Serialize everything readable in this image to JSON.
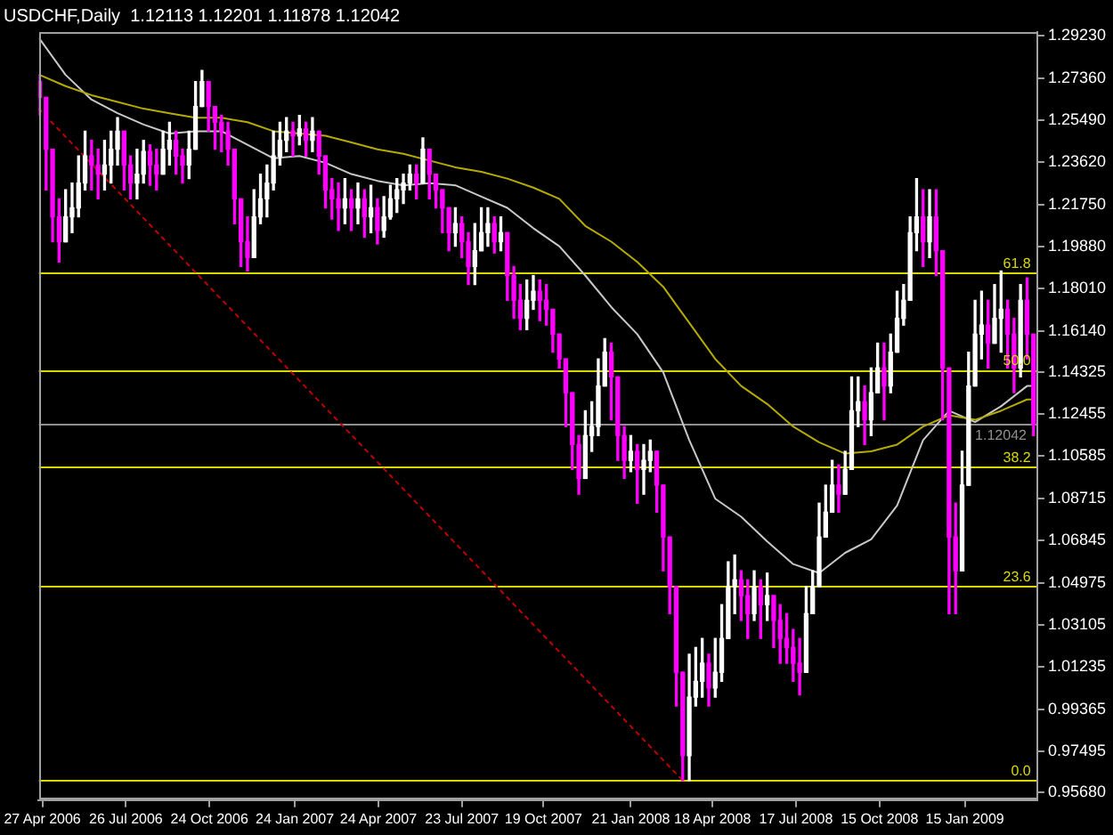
{
  "chart_data": {
    "type": "candlestick",
    "title": "USDCHF,Daily  1.12113 1.12201 1.11878 1.12042",
    "x": [
      "2006-04-24",
      "2006-05-01",
      "2006-05-08",
      "2006-05-15",
      "2006-05-22",
      "2006-05-29",
      "2006-06-05",
      "2006-06-12",
      "2006-06-19",
      "2006-06-26",
      "2006-07-03",
      "2006-07-10",
      "2006-07-17",
      "2006-07-24",
      "2006-07-31",
      "2006-08-07",
      "2006-08-14",
      "2006-08-21",
      "2006-08-28",
      "2006-09-04",
      "2006-09-11",
      "2006-09-18",
      "2006-09-25",
      "2006-10-02",
      "2006-10-09",
      "2006-10-16",
      "2006-10-23",
      "2006-10-30",
      "2006-11-06",
      "2006-11-13",
      "2006-11-20",
      "2006-11-27",
      "2006-12-04",
      "2006-12-11",
      "2006-12-18",
      "2006-12-25",
      "2007-01-01",
      "2007-01-08",
      "2007-01-15",
      "2007-01-22",
      "2007-01-29",
      "2007-02-05",
      "2007-02-12",
      "2007-02-19",
      "2007-02-26",
      "2007-03-05",
      "2007-03-12",
      "2007-03-19",
      "2007-03-26",
      "2007-04-02",
      "2007-04-09",
      "2007-04-16",
      "2007-04-23",
      "2007-04-30",
      "2007-05-07",
      "2007-05-14",
      "2007-05-21",
      "2007-05-28",
      "2007-06-04",
      "2007-06-11",
      "2007-06-18",
      "2007-06-25",
      "2007-07-02",
      "2007-07-09",
      "2007-07-16",
      "2007-07-23",
      "2007-07-30",
      "2007-08-06",
      "2007-08-13",
      "2007-08-20",
      "2007-08-27",
      "2007-09-03",
      "2007-09-10",
      "2007-09-17",
      "2007-09-24",
      "2007-10-01",
      "2007-10-08",
      "2007-10-15",
      "2007-10-22",
      "2007-10-29",
      "2007-11-05",
      "2007-11-12",
      "2007-11-19",
      "2007-11-26",
      "2007-12-03",
      "2007-12-10",
      "2007-12-17",
      "2007-12-24",
      "2007-12-31",
      "2008-01-07",
      "2008-01-14",
      "2008-01-21",
      "2008-01-28",
      "2008-02-04",
      "2008-02-11",
      "2008-02-18",
      "2008-02-25",
      "2008-03-03",
      "2008-03-10",
      "2008-03-17",
      "2008-03-24",
      "2008-03-31",
      "2008-04-07",
      "2008-04-14",
      "2008-04-21",
      "2008-04-28",
      "2008-05-05",
      "2008-05-12",
      "2008-05-19",
      "2008-05-26",
      "2008-06-02",
      "2008-06-09",
      "2008-06-16",
      "2008-06-23",
      "2008-06-30",
      "2008-07-07",
      "2008-07-14",
      "2008-07-21",
      "2008-07-28",
      "2008-08-04",
      "2008-08-11",
      "2008-08-18",
      "2008-08-25",
      "2008-09-01",
      "2008-09-08",
      "2008-09-15",
      "2008-09-22",
      "2008-09-29",
      "2008-10-06",
      "2008-10-13",
      "2008-10-20",
      "2008-10-27",
      "2008-11-03",
      "2008-11-10",
      "2008-11-17",
      "2008-11-24",
      "2008-12-01",
      "2008-12-08",
      "2008-12-15",
      "2008-12-22",
      "2008-12-29",
      "2009-01-05",
      "2009-01-12",
      "2009-01-19",
      "2009-01-26",
      "2009-02-02",
      "2009-02-09",
      "2009-02-16",
      "2009-02-23",
      "2009-03-02",
      "2009-03-09",
      "2009-03-16",
      "2009-03-23",
      "2009-03-30"
    ],
    "ohlc": [
      [
        1.272,
        1.275,
        1.257,
        1.265
      ],
      [
        1.265,
        1.265,
        1.224,
        1.242
      ],
      [
        1.242,
        1.242,
        1.201,
        1.212
      ],
      [
        1.212,
        1.22,
        1.192,
        1.201
      ],
      [
        1.201,
        1.224,
        1.201,
        1.212
      ],
      [
        1.212,
        1.227,
        1.205,
        1.216
      ],
      [
        1.216,
        1.239,
        1.212,
        1.227
      ],
      [
        1.227,
        1.25,
        1.224,
        1.239
      ],
      [
        1.239,
        1.246,
        1.224,
        1.235
      ],
      [
        1.235,
        1.242,
        1.22,
        1.231
      ],
      [
        1.231,
        1.246,
        1.224,
        1.235
      ],
      [
        1.235,
        1.25,
        1.227,
        1.242
      ],
      [
        1.242,
        1.256,
        1.235,
        1.25
      ],
      [
        1.25,
        1.25,
        1.224,
        1.235
      ],
      [
        1.235,
        1.239,
        1.22,
        1.227
      ],
      [
        1.227,
        1.242,
        1.22,
        1.231
      ],
      [
        1.231,
        1.246,
        1.227,
        1.241
      ],
      [
        1.241,
        1.244,
        1.226,
        1.235
      ],
      [
        1.235,
        1.242,
        1.224,
        1.231
      ],
      [
        1.231,
        1.25,
        1.231,
        1.242
      ],
      [
        1.242,
        1.254,
        1.235,
        1.246
      ],
      [
        1.246,
        1.25,
        1.231,
        1.239
      ],
      [
        1.239,
        1.242,
        1.227,
        1.235
      ],
      [
        1.235,
        1.25,
        1.229,
        1.242
      ],
      [
        1.242,
        1.272,
        1.242,
        1.261
      ],
      [
        1.261,
        1.277,
        1.261,
        1.272
      ],
      [
        1.272,
        1.272,
        1.25,
        1.261
      ],
      [
        1.261,
        1.261,
        1.242,
        1.254
      ],
      [
        1.254,
        1.257,
        1.241,
        1.25
      ],
      [
        1.25,
        1.254,
        1.235,
        1.242
      ],
      [
        1.242,
        1.242,
        1.209,
        1.22
      ],
      [
        1.22,
        1.22,
        1.19,
        1.201
      ],
      [
        1.201,
        1.212,
        1.188,
        1.194
      ],
      [
        1.194,
        1.224,
        1.194,
        1.212
      ],
      [
        1.212,
        1.231,
        1.209,
        1.22
      ],
      [
        1.22,
        1.235,
        1.212,
        1.227
      ],
      [
        1.227,
        1.25,
        1.224,
        1.239
      ],
      [
        1.239,
        1.254,
        1.235,
        1.246
      ],
      [
        1.246,
        1.256,
        1.241,
        1.25
      ],
      [
        1.25,
        1.254,
        1.239,
        1.248
      ],
      [
        1.248,
        1.257,
        1.244,
        1.251
      ],
      [
        1.251,
        1.254,
        1.239,
        1.246
      ],
      [
        1.246,
        1.256,
        1.241,
        1.25
      ],
      [
        1.25,
        1.25,
        1.231,
        1.239
      ],
      [
        1.239,
        1.239,
        1.216,
        1.224
      ],
      [
        1.224,
        1.229,
        1.211,
        1.22
      ],
      [
        1.22,
        1.227,
        1.206,
        1.216
      ],
      [
        1.216,
        1.229,
        1.209,
        1.22
      ],
      [
        1.22,
        1.224,
        1.206,
        1.216
      ],
      [
        1.216,
        1.227,
        1.209,
        1.22
      ],
      [
        1.22,
        1.224,
        1.203,
        1.212
      ],
      [
        1.212,
        1.226,
        1.205,
        1.216
      ],
      [
        1.216,
        1.22,
        1.2,
        1.206
      ],
      [
        1.206,
        1.221,
        1.203,
        1.212
      ],
      [
        1.212,
        1.226,
        1.211,
        1.22
      ],
      [
        1.22,
        1.229,
        1.214,
        1.224
      ],
      [
        1.224,
        1.231,
        1.218,
        1.227
      ],
      [
        1.227,
        1.235,
        1.224,
        1.231
      ],
      [
        1.231,
        1.235,
        1.22,
        1.227
      ],
      [
        1.227,
        1.247,
        1.227,
        1.242
      ],
      [
        1.242,
        1.242,
        1.22,
        1.231
      ],
      [
        1.231,
        1.231,
        1.216,
        1.224
      ],
      [
        1.224,
        1.224,
        1.205,
        1.216
      ],
      [
        1.216,
        1.216,
        1.197,
        1.205
      ],
      [
        1.205,
        1.216,
        1.199,
        1.209
      ],
      [
        1.209,
        1.212,
        1.194,
        1.201
      ],
      [
        1.201,
        1.205,
        1.182,
        1.19
      ],
      [
        1.19,
        1.209,
        1.182,
        1.197
      ],
      [
        1.197,
        1.216,
        1.197,
        1.205
      ],
      [
        1.205,
        1.216,
        1.199,
        1.209
      ],
      [
        1.209,
        1.212,
        1.196,
        1.201
      ],
      [
        1.201,
        1.212,
        1.197,
        1.205
      ],
      [
        1.205,
        1.205,
        1.175,
        1.186
      ],
      [
        1.186,
        1.19,
        1.167,
        1.175
      ],
      [
        1.175,
        1.182,
        1.162,
        1.167
      ],
      [
        1.167,
        1.184,
        1.162,
        1.175
      ],
      [
        1.175,
        1.186,
        1.171,
        1.179
      ],
      [
        1.179,
        1.184,
        1.166,
        1.175
      ],
      [
        1.175,
        1.182,
        1.164,
        1.171
      ],
      [
        1.171,
        1.171,
        1.152,
        1.16
      ],
      [
        1.16,
        1.16,
        1.145,
        1.149
      ],
      [
        1.149,
        1.149,
        1.119,
        1.134
      ],
      [
        1.134,
        1.134,
        1.1,
        1.111
      ],
      [
        1.111,
        1.115,
        1.089,
        1.096
      ],
      [
        1.096,
        1.126,
        1.096,
        1.115
      ],
      [
        1.115,
        1.13,
        1.108,
        1.119
      ],
      [
        1.119,
        1.149,
        1.115,
        1.137
      ],
      [
        1.137,
        1.158,
        1.137,
        1.152
      ],
      [
        1.152,
        1.156,
        1.122,
        1.141
      ],
      [
        1.141,
        1.141,
        1.104,
        1.115
      ],
      [
        1.115,
        1.119,
        1.096,
        1.104
      ],
      [
        1.104,
        1.115,
        1.099,
        1.108
      ],
      [
        1.108,
        1.111,
        1.085,
        1.1
      ],
      [
        1.1,
        1.111,
        1.089,
        1.104
      ],
      [
        1.104,
        1.113,
        1.099,
        1.108
      ],
      [
        1.108,
        1.108,
        1.081,
        1.093
      ],
      [
        1.093,
        1.093,
        1.055,
        1.07
      ],
      [
        1.07,
        1.07,
        1.036,
        1.048
      ],
      [
        1.048,
        1.048,
        0.995,
        1.01
      ],
      [
        1.01,
        1.01,
        0.962,
        0.973
      ],
      [
        0.973,
        1.018,
        0.962,
        0.999
      ],
      [
        0.999,
        1.021,
        0.995,
        1.006
      ],
      [
        1.006,
        1.025,
        0.999,
        1.014
      ],
      [
        1.014,
        1.018,
        0.995,
        1.003
      ],
      [
        1.003,
        1.025,
        0.999,
        1.01
      ],
      [
        1.01,
        1.04,
        1.006,
        1.025
      ],
      [
        1.025,
        1.059,
        1.025,
        1.048
      ],
      [
        1.048,
        1.062,
        1.036,
        1.051
      ],
      [
        1.051,
        1.055,
        1.033,
        1.044
      ],
      [
        1.044,
        1.051,
        1.025,
        1.036
      ],
      [
        1.036,
        1.055,
        1.033,
        1.048
      ],
      [
        1.048,
        1.051,
        1.025,
        1.04
      ],
      [
        1.04,
        1.054,
        1.033,
        1.044
      ],
      [
        1.044,
        1.044,
        1.021,
        1.033
      ],
      [
        1.033,
        1.04,
        1.014,
        1.025
      ],
      [
        1.025,
        1.036,
        1.014,
        1.021
      ],
      [
        1.021,
        1.029,
        1.006,
        1.014
      ],
      [
        1.014,
        1.025,
        1.0,
        1.01
      ],
      [
        1.01,
        1.048,
        1.01,
        1.036
      ],
      [
        1.036,
        1.055,
        1.036,
        1.048
      ],
      [
        1.048,
        1.085,
        1.048,
        1.07
      ],
      [
        1.07,
        1.093,
        1.07,
        1.081
      ],
      [
        1.081,
        1.104,
        1.081,
        1.093
      ],
      [
        1.093,
        1.102,
        1.081,
        1.089
      ],
      [
        1.089,
        1.108,
        1.089,
        1.1
      ],
      [
        1.1,
        1.141,
        1.1,
        1.126
      ],
      [
        1.126,
        1.141,
        1.119,
        1.13
      ],
      [
        1.13,
        1.137,
        1.111,
        1.122
      ],
      [
        1.122,
        1.145,
        1.115,
        1.134
      ],
      [
        1.134,
        1.156,
        1.134,
        1.145
      ],
      [
        1.145,
        1.156,
        1.122,
        1.137
      ],
      [
        1.137,
        1.16,
        1.134,
        1.152
      ],
      [
        1.152,
        1.179,
        1.152,
        1.167
      ],
      [
        1.167,
        1.182,
        1.164,
        1.175
      ],
      [
        1.175,
        1.212,
        1.175,
        1.205
      ],
      [
        1.205,
        1.229,
        1.197,
        1.212
      ],
      [
        1.212,
        1.224,
        1.19,
        1.201
      ],
      [
        1.201,
        1.224,
        1.194,
        1.212
      ],
      [
        1.212,
        1.224,
        1.186,
        1.197
      ],
      [
        1.197,
        1.197,
        1.122,
        1.145
      ],
      [
        1.145,
        1.145,
        1.036,
        1.07
      ],
      [
        1.07,
        1.085,
        1.036,
        1.055
      ],
      [
        1.055,
        1.108,
        1.055,
        1.093
      ],
      [
        1.093,
        1.152,
        1.093,
        1.137
      ],
      [
        1.137,
        1.175,
        1.137,
        1.16
      ],
      [
        1.16,
        1.179,
        1.149,
        1.164
      ],
      [
        1.164,
        1.175,
        1.145,
        1.156
      ],
      [
        1.156,
        1.182,
        1.156,
        1.167
      ],
      [
        1.167,
        1.188,
        1.152,
        1.171
      ],
      [
        1.171,
        1.175,
        1.145,
        1.16
      ],
      [
        1.16,
        1.167,
        1.134,
        1.145
      ],
      [
        1.145,
        1.182,
        1.141,
        1.175
      ],
      [
        1.175,
        1.185,
        1.149,
        1.16
      ],
      [
        1.16,
        1.16,
        1.115,
        1.12
      ]
    ],
    "colors": [
      "#ff00ff",
      "#ff00ff",
      "#ff00ff",
      "#ff00ff",
      "#ffffff",
      "#ffffff",
      "#ffffff",
      "#ffffff",
      "#ff00ff",
      "#ff00ff",
      "#ffffff",
      "#ffffff",
      "#ffffff",
      "#ff00ff",
      "#ff00ff",
      "#ffffff",
      "#ffffff",
      "#ff00ff",
      "#ff00ff",
      "#ffffff",
      "#ffffff",
      "#ff00ff",
      "#ff00ff",
      "#ffffff",
      "#ffffff",
      "#ffffff",
      "#ff00ff",
      "#ff00ff",
      "#ff00ff",
      "#ff00ff",
      "#ff00ff",
      "#ff00ff",
      "#ff00ff",
      "#ffffff",
      "#ffffff",
      "#ffffff",
      "#ffffff",
      "#ffffff",
      "#ffffff",
      "#ff00ff",
      "#ffffff",
      "#ff00ff",
      "#ffffff",
      "#ff00ff",
      "#ff00ff",
      "#ff00ff",
      "#ff00ff",
      "#ffffff",
      "#ff00ff",
      "#ffffff",
      "#ff00ff",
      "#ffffff",
      "#ff00ff",
      "#ffffff",
      "#ffffff",
      "#ffffff",
      "#ffffff",
      "#ffffff",
      "#ff00ff",
      "#ffffff",
      "#ff00ff",
      "#ff00ff",
      "#ff00ff",
      "#ff00ff",
      "#ffffff",
      "#ff00ff",
      "#ff00ff",
      "#ffffff",
      "#ffffff",
      "#ffffff",
      "#ff00ff",
      "#ffffff",
      "#ff00ff",
      "#ff00ff",
      "#ff00ff",
      "#ffffff",
      "#ffffff",
      "#ff00ff",
      "#ff00ff",
      "#ff00ff",
      "#ff00ff",
      "#ff00ff",
      "#ff00ff",
      "#ff00ff",
      "#ffffff",
      "#ffffff",
      "#ffffff",
      "#ffffff",
      "#ff00ff",
      "#ff00ff",
      "#ff00ff",
      "#ffffff",
      "#ff00ff",
      "#ffffff",
      "#ffffff",
      "#ff00ff",
      "#ff00ff",
      "#ff00ff",
      "#ff00ff",
      "#ff00ff",
      "#ffffff",
      "#ffffff",
      "#ffffff",
      "#ff00ff",
      "#ffffff",
      "#ffffff",
      "#ffffff",
      "#ffffff",
      "#ff00ff",
      "#ff00ff",
      "#ffffff",
      "#ff00ff",
      "#ffffff",
      "#ff00ff",
      "#ff00ff",
      "#ff00ff",
      "#ff00ff",
      "#ff00ff",
      "#ffffff",
      "#ffffff",
      "#ffffff",
      "#ffffff",
      "#ffffff",
      "#ff00ff",
      "#ffffff",
      "#ffffff",
      "#ffffff",
      "#ff00ff",
      "#ffffff",
      "#ffffff",
      "#ff00ff",
      "#ffffff",
      "#ffffff",
      "#ffffff",
      "#ffffff",
      "#ffffff",
      "#ff00ff",
      "#ffffff",
      "#ff00ff",
      "#ff00ff",
      "#ff00ff",
      "#ff00ff",
      "#ffffff",
      "#ffffff",
      "#ffffff",
      "#ffffff",
      "#ff00ff",
      "#ffffff",
      "#ffffff",
      "#ff00ff",
      "#ff00ff",
      "#ffffff",
      "#ff00ff",
      "#ff00ff"
    ],
    "series": [
      {
        "type": "line",
        "color": "#b4aa00",
        "x": [
          "2006-04-24",
          "2006-05-22",
          "2006-06-19",
          "2006-07-17",
          "2006-08-14",
          "2006-09-11",
          "2006-10-09",
          "2006-11-06",
          "2006-12-04",
          "2007-01-01",
          "2007-01-29",
          "2007-02-26",
          "2007-03-26",
          "2007-04-23",
          "2007-05-21",
          "2007-06-18",
          "2007-07-16",
          "2007-08-13",
          "2007-09-10",
          "2007-10-08",
          "2007-11-05",
          "2007-12-03",
          "2007-12-31",
          "2008-01-28",
          "2008-02-25",
          "2008-03-24",
          "2008-04-21",
          "2008-05-19",
          "2008-06-16",
          "2008-07-14",
          "2008-08-11",
          "2008-09-08",
          "2008-10-06",
          "2008-11-03",
          "2008-12-01",
          "2008-12-29",
          "2009-01-26",
          "2009-02-23",
          "2009-03-23",
          "2009-03-30"
        ],
        "values": [
          1.275,
          1.27,
          1.266,
          1.263,
          1.26,
          1.258,
          1.256,
          1.256,
          1.254,
          1.25,
          1.249,
          1.248,
          1.245,
          1.242,
          1.24,
          1.237,
          1.234,
          1.232,
          1.229,
          1.225,
          1.22,
          1.208,
          1.201,
          1.192,
          1.181,
          1.165,
          1.149,
          1.137,
          1.129,
          1.119,
          1.112,
          1.107,
          1.108,
          1.111,
          1.119,
          1.124,
          1.122,
          1.126,
          1.131,
          1.131
        ]
      },
      {
        "type": "line",
        "color": "#c8c8c8",
        "x": [
          "2006-04-24",
          "2006-05-22",
          "2006-06-19",
          "2006-07-17",
          "2006-08-14",
          "2006-09-11",
          "2006-10-09",
          "2006-11-06",
          "2006-12-04",
          "2007-01-01",
          "2007-01-29",
          "2007-02-26",
          "2007-03-26",
          "2007-04-23",
          "2007-05-21",
          "2007-06-18",
          "2007-07-16",
          "2007-08-13",
          "2007-09-10",
          "2007-10-08",
          "2007-11-05",
          "2007-12-03",
          "2007-12-31",
          "2008-01-28",
          "2008-02-25",
          "2008-03-24",
          "2008-04-21",
          "2008-05-19",
          "2008-06-16",
          "2008-07-14",
          "2008-08-11",
          "2008-09-08",
          "2008-10-06",
          "2008-11-03",
          "2008-12-01",
          "2008-12-29",
          "2009-01-26",
          "2009-02-23",
          "2009-03-23",
          "2009-03-30"
        ],
        "values": [
          1.291,
          1.275,
          1.264,
          1.258,
          1.253,
          1.249,
          1.25,
          1.25,
          1.244,
          1.238,
          1.239,
          1.236,
          1.231,
          1.228,
          1.226,
          1.227,
          1.226,
          1.221,
          1.216,
          1.207,
          1.199,
          1.186,
          1.172,
          1.16,
          1.143,
          1.113,
          1.087,
          1.079,
          1.068,
          1.058,
          1.054,
          1.063,
          1.069,
          1.084,
          1.113,
          1.126,
          1.121,
          1.128,
          1.137,
          1.137
        ]
      },
      {
        "type": "line",
        "color": "#c00000",
        "line_style": "dotted",
        "x": [
          "2006-04-23",
          "2008-03-17"
        ],
        "values": [
          1.26,
          0.962
        ]
      }
    ],
    "xlim": [
      "2006-04-23",
      "2009-04-03"
    ],
    "xticks": [
      {
        "value": "2006-04-27",
        "label": "27 Apr 2006"
      },
      {
        "value": "2006-07-26",
        "label": "26 Jul 2006"
      },
      {
        "value": "2006-10-24",
        "label": "24 Oct 2006"
      },
      {
        "value": "2007-01-24",
        "label": "24 Jan 2007"
      },
      {
        "value": "2007-04-24",
        "label": "24 Apr 2007"
      },
      {
        "value": "2007-07-23",
        "label": "23 Jul 2007"
      },
      {
        "value": "2007-10-19",
        "label": "19 Oct 2007"
      },
      {
        "value": "2008-01-21",
        "label": "21 Jan 2008"
      },
      {
        "value": "2008-04-18",
        "label": "18 Apr 2008"
      },
      {
        "value": "2008-07-17",
        "label": "17 Jul 2008"
      },
      {
        "value": "2008-10-15",
        "label": "15 Oct 2008"
      },
      {
        "value": "2009-01-15",
        "label": "15 Jan 2009"
      }
    ],
    "ylim": [
      0.9533,
      1.294
    ],
    "yticks": [
      {
        "value": 1.2923,
        "label": "1.29230"
      },
      {
        "value": 1.2736,
        "label": "1.27360"
      },
      {
        "value": 1.2549,
        "label": "1.25490"
      },
      {
        "value": 1.2362,
        "label": "1.23620"
      },
      {
        "value": 1.2175,
        "label": "1.21750"
      },
      {
        "value": 1.1988,
        "label": "1.19880"
      },
      {
        "value": 1.1801,
        "label": "1.18010"
      },
      {
        "value": 1.1614,
        "label": "1.16140"
      },
      1.14325,
      1.12455,
      1.10585,
      1.08715,
      1.06845,
      1.04975,
      1.03105,
      1.01235,
      0.99365,
      0.97495,
      {
        "value": 0.9568,
        "label": "0.95680"
      }
    ],
    "ref_lines": [
      {
        "axis": "y",
        "value": 1.187,
        "color": "#d8d800"
      },
      {
        "axis": "y",
        "value": 1.144,
        "color": "#d8d800"
      },
      {
        "axis": "y",
        "value": 1.101,
        "color": "#d8d800"
      },
      {
        "axis": "y",
        "value": 1.048,
        "color": "#d8d800"
      },
      {
        "axis": "y",
        "value": 0.962,
        "color": "#d8d800"
      },
      {
        "axis": "y",
        "value": 1.12042,
        "label": "1.12042",
        "color": "#909090"
      }
    ],
    "annotations": [
      {
        "text": "61.8",
        "x": "2009-03-27",
        "y": 1.187
      },
      {
        "text": "50.0",
        "x": "2009-03-27",
        "y": 1.144
      },
      {
        "text": "38.2",
        "x": "2009-03-27",
        "y": 1.101
      },
      {
        "text": "23.6",
        "x": "2009-03-27",
        "y": 1.048
      },
      {
        "text": "0.0",
        "x": "2009-03-27",
        "y": 0.962
      }
    ]
  }
}
